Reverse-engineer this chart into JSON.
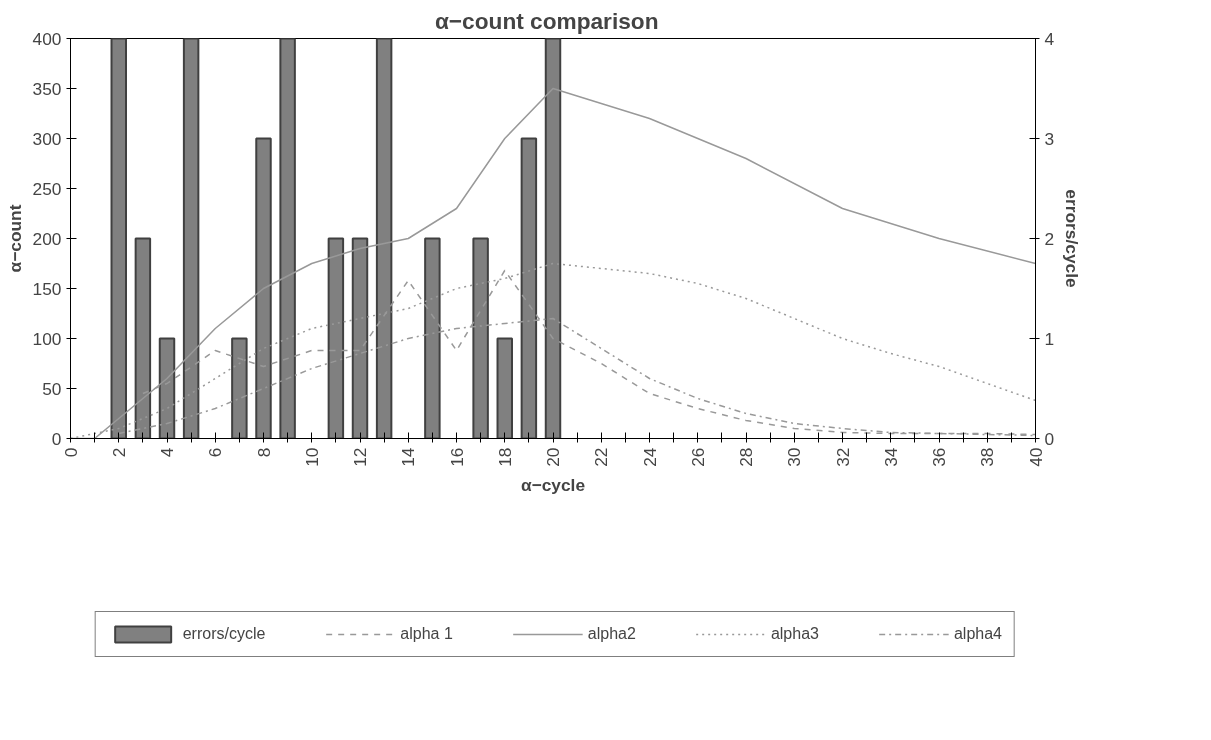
{
  "chart_data": {
    "type": "bar",
    "title": "α−count   comparison",
    "xlabel": "α−cycle",
    "ylabel": "α−count",
    "y2label": "errors/cycle",
    "xlim": [
      0,
      40
    ],
    "xticks": [
      0,
      {
        "value": 1,
        "label": null
      },
      2,
      {
        "value": 3,
        "label": null
      },
      4,
      {
        "value": 5,
        "label": null
      },
      6,
      {
        "value": 7,
        "label": null
      },
      8,
      {
        "value": 9,
        "label": null
      },
      10,
      {
        "value": 11,
        "label": null
      },
      12,
      {
        "value": 13,
        "label": null
      },
      14,
      {
        "value": 15,
        "label": null
      },
      16,
      {
        "value": 17,
        "label": null
      },
      18,
      {
        "value": 19,
        "label": null
      },
      20,
      {
        "value": 21,
        "label": null
      },
      22,
      {
        "value": 23,
        "label": null
      },
      24,
      {
        "value": 25,
        "label": null
      },
      26,
      {
        "value": 27,
        "label": null
      },
      28,
      {
        "value": 29,
        "label": null
      },
      30,
      {
        "value": 31,
        "label": null
      },
      32,
      {
        "value": 33,
        "label": null
      },
      34,
      {
        "value": 35,
        "label": null
      },
      36,
      {
        "value": 37,
        "label": null
      },
      38,
      {
        "value": 39,
        "label": null
      },
      40
    ],
    "ylim": [
      0,
      400
    ],
    "yticks": [
      0,
      50,
      100,
      150,
      200,
      250,
      300,
      350,
      400
    ],
    "y2lim": [
      0,
      4
    ],
    "y2ticks": [
      0,
      1,
      2,
      3,
      4
    ],
    "grid": false,
    "legend": "bottom",
    "series": [
      {
        "name": "errors/cycle",
        "axis": "y2",
        "color": "#808080",
        "x": [
          2,
          3,
          4,
          5,
          7,
          8,
          9,
          11,
          12,
          13,
          15,
          17,
          18,
          19,
          20
        ],
        "values": [
          4,
          2,
          1,
          4,
          1,
          3,
          4,
          2,
          2,
          4,
          2,
          2,
          1,
          3,
          4
        ]
      },
      {
        "name": "alpha 1",
        "type": "line",
        "line_style": "dashed",
        "color": "#999999",
        "x": [
          3,
          4,
          6,
          8,
          10,
          12,
          14,
          16,
          18,
          20,
          22,
          24,
          26,
          28,
          30,
          32,
          34,
          36,
          38,
          40
        ],
        "values": [
          45,
          55,
          88,
          72,
          88,
          88,
          158,
          88,
          168,
          100,
          75,
          45,
          30,
          18,
          10,
          6,
          5,
          5,
          5,
          4
        ]
      },
      {
        "name": "alpha2",
        "type": "line",
        "line_style": "solid",
        "color": "#999999",
        "x": [
          0,
          1,
          4,
          6,
          8,
          10,
          12,
          14,
          16,
          18,
          20,
          24,
          28,
          32,
          36,
          40
        ],
        "values": [
          0,
          0,
          60,
          110,
          150,
          175,
          190,
          200,
          230,
          300,
          350,
          320,
          280,
          230,
          200,
          175
        ]
      },
      {
        "name": "alpha3",
        "type": "line",
        "line_style": "dotted",
        "color": "#999999",
        "x": [
          0,
          2,
          4,
          6,
          8,
          10,
          12,
          14,
          16,
          18,
          20,
          22,
          24,
          26,
          28,
          30,
          32,
          34,
          36,
          38,
          40
        ],
        "values": [
          0,
          10,
          30,
          60,
          90,
          110,
          120,
          130,
          150,
          160,
          175,
          170,
          165,
          155,
          140,
          120,
          100,
          85,
          72,
          55,
          38
        ]
      },
      {
        "name": "alpha4",
        "type": "line",
        "line_style": "dashdot",
        "color": "#999999",
        "x": [
          2,
          4,
          6,
          8,
          10,
          12,
          14,
          16,
          18,
          20,
          22,
          24,
          26,
          28,
          30,
          32,
          34,
          36,
          38,
          40
        ],
        "values": [
          5,
          15,
          30,
          50,
          70,
          85,
          100,
          110,
          115,
          120,
          90,
          60,
          40,
          25,
          15,
          10,
          6,
          5,
          4,
          3
        ]
      }
    ]
  }
}
